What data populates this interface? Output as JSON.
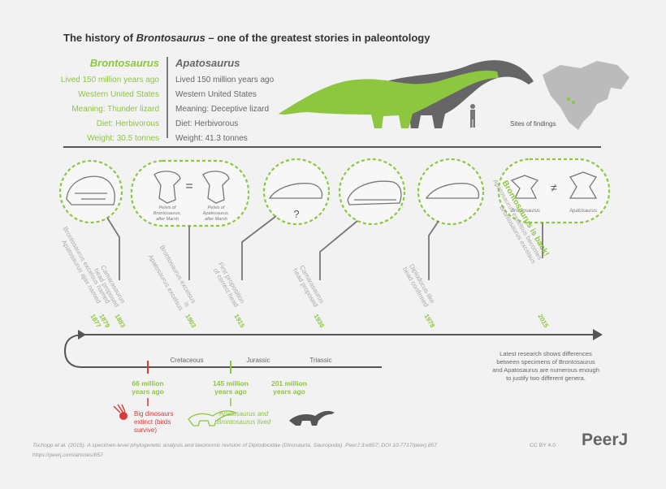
{
  "header": {
    "title": [
      "The history of ",
      "Brontosaurus",
      " – one of the greatest stories in paleontology"
    ]
  },
  "profiles": [
    {
      "name": "Brontosaurus",
      "facts": [
        "Lived 150 million years ago",
        "Western United States",
        "Meaning: Thunder lizard",
        "Diet: Herbivorous",
        "Weight: 30.5 tonnes"
      ]
    },
    {
      "name": "Apatosaurus",
      "facts": [
        "Lived 150 million years ago",
        "Western United States",
        "Meaning: Deceptive lizard",
        "Diet: Herbivorous",
        "Weight: 41.3 tonnes"
      ]
    }
  ],
  "map": {
    "caption": "Sites of findings"
  },
  "bubbles": {
    "pelvis_left": [
      "Pelvis of",
      "Brontosaurus,",
      "after Marsh"
    ],
    "equals": "=",
    "pelvis_right": [
      "Pelvis of",
      "Apatosaurus,",
      "after Marsh"
    ],
    "question": "?",
    "vertebra_left": "Brontosaurus",
    "not_equal": "≠",
    "vertebra_right": "Apatosaurus"
  },
  "events": [
    {
      "year": "1877",
      "lines": [
        "Apatosaurus ajax named"
      ]
    },
    {
      "year": "1879",
      "lines": [
        "Brontosaurus excelsus named"
      ]
    },
    {
      "year": "1883",
      "lines": [
        "Camarasaurus",
        "head proposed"
      ]
    },
    {
      "year": "1903",
      "lines": [
        "Brontosaurus excelsus",
        "is",
        "Apatosaurus excelsus"
      ]
    },
    {
      "year": "1915",
      "lines": [
        "First proposition",
        "of correct head"
      ]
    },
    {
      "year": "1936",
      "lines": [
        "Camarasaurus",
        "head proposed"
      ]
    },
    {
      "year": "1978",
      "lines": [
        "Diplodocus-like",
        "head confirmed"
      ]
    },
    {
      "year": "2015",
      "lines": [
        "Brontosaurus is back!",
        "Apatosaurus excelsus becomes",
        "Brontosaurus excelsus"
      ]
    }
  ],
  "periods": [
    "Cretaceous",
    "Jurassic",
    "Triassic"
  ],
  "ages": [
    [
      "66 million",
      "years ago"
    ],
    [
      "145 million",
      "years ago"
    ],
    [
      "201 million",
      "years ago"
    ]
  ],
  "notes": {
    "extinction": [
      "Big dinosaurs",
      "extinct (birds",
      "survive)"
    ],
    "lived": [
      "Apatosaurus and",
      "Brontosaurus lived"
    ],
    "research": [
      "Latest research shows differences",
      "between specimens of Brontosaurus",
      "and Apatosaurus are numerous enough",
      "to justify two different genera."
    ]
  },
  "footer": {
    "citation": "Tschopp et al. (2015). A specimen-level phylogenetic analysis and taxonomic revision of Diplodocidae (Dinosauria, Sauropoda). PeerJ 3:e857; DOI 10.7717/peerj.857",
    "url": "https://peerj.com/articles/857",
    "license": "CC BY 4.0",
    "logo": "PeerJ"
  }
}
